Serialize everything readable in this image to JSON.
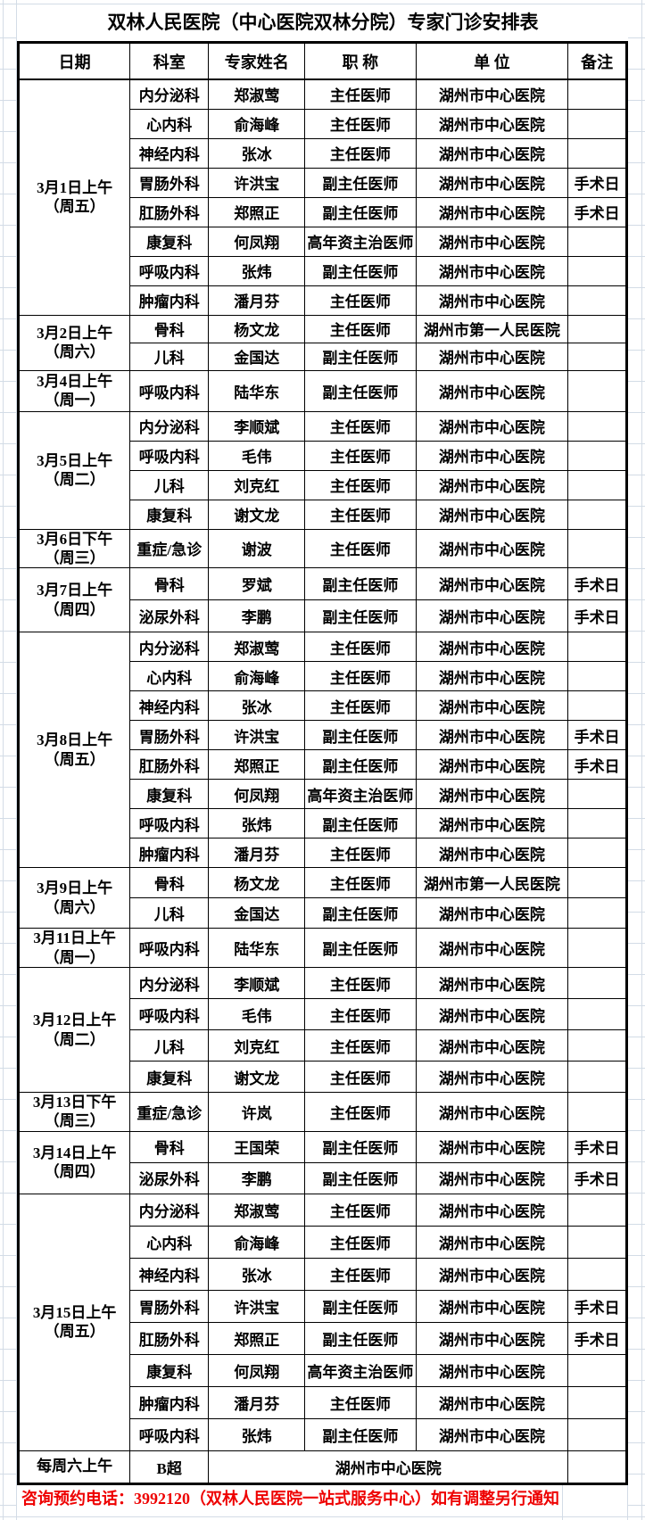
{
  "title": "双林人民医院（中心医院双林分院）专家门诊安排表",
  "columns": [
    "日期",
    "科室",
    "专家姓名",
    "职 称",
    "单 位",
    "备注"
  ],
  "colors": {
    "border": "#000000",
    "grid": "#d3dce6",
    "footer_red": "#ee0000"
  },
  "footer": "咨询预约电话：3992120（双林人民医院一站式服务中心）如有调整另行通知",
  "blocks": [
    {
      "date": "3月1日上午",
      "week": "（周五）",
      "top": "none",
      "rows": [
        {
          "dept": "内分泌科",
          "name": "郑淑莺",
          "title": "主任医师",
          "org": "湖州市中心医院",
          "note": ""
        },
        {
          "dept": "心内科",
          "name": "俞海峰",
          "title": "主任医师",
          "org": "湖州市中心医院",
          "note": ""
        },
        {
          "dept": "神经内科",
          "name": "张冰",
          "title": "主任医师",
          "org": "湖州市中心医院",
          "note": ""
        },
        {
          "dept": "胃肠外科",
          "name": "许洪宝",
          "title": "副主任医师",
          "org": "湖州市中心医院",
          "note": "手术日"
        },
        {
          "dept": "肛肠外科",
          "name": "郑照正",
          "title": "副主任医师",
          "org": "湖州市中心医院",
          "note": "手术日"
        },
        {
          "dept": "康复科",
          "name": "何凤翔",
          "title": "高年资主治医师",
          "org": "湖州市中心医院",
          "note": ""
        },
        {
          "dept": "呼吸内科",
          "name": "张炜",
          "title": "副主任医师",
          "org": "湖州市中心医院",
          "note": ""
        },
        {
          "dept": "肿瘤内科",
          "name": "潘月芬",
          "title": "主任医师",
          "org": "湖州市中心医院",
          "note": ""
        }
      ]
    },
    {
      "date": "3月2日上午",
      "week": "（周六）",
      "top": "medium",
      "rows": [
        {
          "dept": "骨科",
          "name": "杨文龙",
          "title": "主任医师",
          "org": "湖州市第一人民医院",
          "note": ""
        },
        {
          "dept": "儿科",
          "name": "金国达",
          "title": "副主任医师",
          "org": "湖州市中心医院",
          "note": ""
        }
      ]
    },
    {
      "date": "3月4日上午",
      "week": "（周一）",
      "top": "thick",
      "rows": [
        {
          "dept": "呼吸内科",
          "name": "陆华东",
          "title": "副主任医师",
          "org": "湖州市中心医院",
          "note": ""
        }
      ]
    },
    {
      "date": "3月5日上午",
      "week": "（周二）",
      "top": "thick",
      "rows": [
        {
          "dept": "内分泌科",
          "name": "李顺斌",
          "title": "主任医师",
          "org": "湖州市中心医院",
          "note": ""
        },
        {
          "dept": "呼吸内科",
          "name": "毛伟",
          "title": "主任医师",
          "org": "湖州市中心医院",
          "note": ""
        },
        {
          "dept": "儿科",
          "name": "刘克红",
          "title": "主任医师",
          "org": "湖州市中心医院",
          "note": ""
        },
        {
          "dept": "康复科",
          "name": "谢文龙",
          "title": "主任医师",
          "org": "湖州市中心医院",
          "note": ""
        }
      ]
    },
    {
      "date": "3月6日下午",
      "week": "（周三）",
      "top": "medium",
      "rows": [
        {
          "dept": "重症/急诊",
          "name": "谢波",
          "title": "主任医师",
          "org": "湖州市中心医院",
          "note": ""
        }
      ]
    },
    {
      "date": "3月7日上午",
      "week": "（周四）",
      "top": "medium",
      "rows": [
        {
          "dept": "骨科",
          "name": "罗斌",
          "title": "副主任医师",
          "org": "湖州市中心医院",
          "note": "手术日"
        },
        {
          "dept": "泌尿外科",
          "name": "李鹏",
          "title": "副主任医师",
          "org": "湖州市中心医院",
          "note": "手术日"
        }
      ]
    },
    {
      "date": "3月8日上午",
      "week": "（周五）",
      "top": "medium",
      "rows": [
        {
          "dept": "内分泌科",
          "name": "郑淑莺",
          "title": "主任医师",
          "org": "湖州市中心医院",
          "note": ""
        },
        {
          "dept": "心内科",
          "name": "俞海峰",
          "title": "主任医师",
          "org": "湖州市中心医院",
          "note": ""
        },
        {
          "dept": "神经内科",
          "name": "张冰",
          "title": "主任医师",
          "org": "湖州市中心医院",
          "note": ""
        },
        {
          "dept": "胃肠外科",
          "name": "许洪宝",
          "title": "副主任医师",
          "org": "湖州市中心医院",
          "note": "手术日"
        },
        {
          "dept": "肛肠外科",
          "name": "郑照正",
          "title": "副主任医师",
          "org": "湖州市中心医院",
          "note": "手术日"
        },
        {
          "dept": "康复科",
          "name": "何凤翔",
          "title": "高年资主治医师",
          "org": "湖州市中心医院",
          "note": ""
        },
        {
          "dept": "呼吸内科",
          "name": "张炜",
          "title": "副主任医师",
          "org": "湖州市中心医院",
          "note": ""
        },
        {
          "dept": "肿瘤内科",
          "name": "潘月芬",
          "title": "主任医师",
          "org": "湖州市中心医院",
          "note": ""
        }
      ]
    },
    {
      "date": "3月9日上午",
      "week": "（周六）",
      "top": "medium",
      "rows": [
        {
          "dept": "骨科",
          "name": "杨文龙",
          "title": "主任医师",
          "org": "湖州市第一人民医院",
          "note": ""
        },
        {
          "dept": "儿科",
          "name": "金国达",
          "title": "副主任医师",
          "org": "湖州市中心医院",
          "note": ""
        }
      ]
    },
    {
      "date": "3月11日上午",
      "week": "（周一）",
      "top": "thick",
      "rows": [
        {
          "dept": "呼吸内科",
          "name": "陆华东",
          "title": "副主任医师",
          "org": "湖州市中心医院",
          "note": ""
        }
      ]
    },
    {
      "date": "3月12日上午",
      "week": "（周二）",
      "top": "medium",
      "rows": [
        {
          "dept": "内分泌科",
          "name": "李顺斌",
          "title": "主任医师",
          "org": "湖州市中心医院",
          "note": ""
        },
        {
          "dept": "呼吸内科",
          "name": "毛伟",
          "title": "主任医师",
          "org": "湖州市中心医院",
          "note": ""
        },
        {
          "dept": "儿科",
          "name": "刘克红",
          "title": "主任医师",
          "org": "湖州市中心医院",
          "note": ""
        },
        {
          "dept": "康复科",
          "name": "谢文龙",
          "title": "主任医师",
          "org": "湖州市中心医院",
          "note": ""
        }
      ]
    },
    {
      "date": "3月13日下午",
      "week": "（周三）",
      "top": "medium",
      "rows": [
        {
          "dept": "重症/急诊",
          "name": "许岚",
          "title": "主任医师",
          "org": "湖州市中心医院",
          "note": ""
        }
      ]
    },
    {
      "date": "3月14日上午",
      "week": "（周四）",
      "top": "medium",
      "rows": [
        {
          "dept": "骨科",
          "name": "王国荣",
          "title": "副主任医师",
          "org": "湖州市中心医院",
          "note": "手术日"
        },
        {
          "dept": "泌尿外科",
          "name": "李鹏",
          "title": "副主任医师",
          "org": "湖州市中心医院",
          "note": "手术日"
        }
      ]
    },
    {
      "date": "3月15日上午",
      "week": "（周五）",
      "top": "medium",
      "rows": [
        {
          "dept": "内分泌科",
          "name": "郑淑莺",
          "title": "主任医师",
          "org": "湖州市中心医院",
          "note": ""
        },
        {
          "dept": "心内科",
          "name": "俞海峰",
          "title": "主任医师",
          "org": "湖州市中心医院",
          "note": ""
        },
        {
          "dept": "神经内科",
          "name": "张冰",
          "title": "主任医师",
          "org": "湖州市中心医院",
          "note": ""
        },
        {
          "dept": "胃肠外科",
          "name": "许洪宝",
          "title": "副主任医师",
          "org": "湖州市中心医院",
          "note": "手术日"
        },
        {
          "dept": "肛肠外科",
          "name": "郑照正",
          "title": "副主任医师",
          "org": "湖州市中心医院",
          "note": "手术日"
        },
        {
          "dept": "康复科",
          "name": "何凤翔",
          "title": "高年资主治医师",
          "org": "湖州市中心医院",
          "note": ""
        },
        {
          "dept": "肿瘤内科",
          "name": "潘月芬",
          "title": "主任医师",
          "org": "湖州市中心医院",
          "note": ""
        },
        {
          "dept": "呼吸内科",
          "name": "张炜",
          "title": "副主任医师",
          "org": "湖州市中心医院",
          "note": ""
        }
      ]
    },
    {
      "date": "每周六上午",
      "week": "",
      "top": "thick",
      "rows": [
        {
          "dept": "B超",
          "merged_org": "湖州市中心医院",
          "note": ""
        }
      ]
    }
  ]
}
